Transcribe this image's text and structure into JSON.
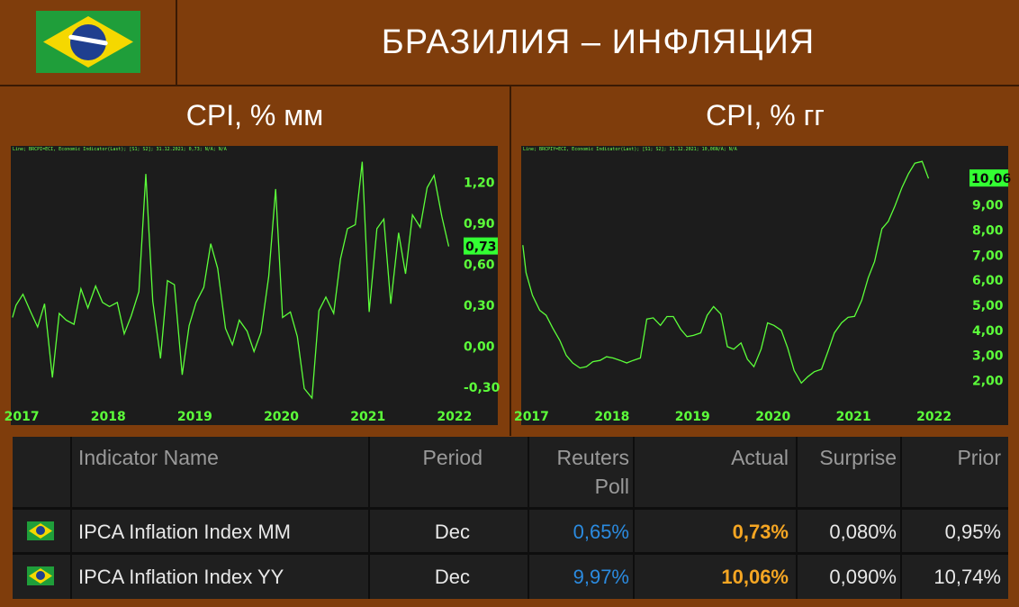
{
  "header": {
    "title": "БРАЗИЛИЯ – ИНФЛЯЦИЯ",
    "left_subtitle": "CPI, % мм",
    "right_subtitle": "CPI, % гг"
  },
  "colors": {
    "background": "#7f3d0c",
    "chart_bg": "#1c1c1c",
    "line": "#5cff3a",
    "poll": "#2b8be0",
    "actual": "#f5a623"
  },
  "chart_data": [
    {
      "type": "line",
      "title": "CPI, % мм",
      "caption": "Line; BRCPI=ECI, Economic Indicator(Last); [S1; S2]; 31.12.2021; 0,73; N/A; N/A",
      "x_labels": [
        "2017",
        "2018",
        "2019",
        "2020",
        "2021",
        "2022"
      ],
      "ytick_labels": [
        "1,20",
        "0,90",
        "0,60",
        "0,30",
        "0,00",
        "-0,30"
      ],
      "last_value_label": "0,73",
      "ylim": [
        -0.38,
        1.4
      ],
      "x": [
        2016.92,
        2016.96,
        2017.04,
        2017.13,
        2017.21,
        2017.29,
        2017.38,
        2017.46,
        2017.54,
        2017.63,
        2017.71,
        2017.79,
        2017.88,
        2017.96,
        2018.04,
        2018.13,
        2018.21,
        2018.29,
        2018.38,
        2018.46,
        2018.54,
        2018.63,
        2018.71,
        2018.79,
        2018.88,
        2018.96,
        2019.04,
        2019.13,
        2019.21,
        2019.29,
        2019.38,
        2019.46,
        2019.54,
        2019.63,
        2019.71,
        2019.79,
        2019.88,
        2019.96,
        2020.04,
        2020.13,
        2020.21,
        2020.29,
        2020.38,
        2020.46,
        2020.54,
        2020.63,
        2020.71,
        2020.79,
        2020.88,
        2020.96,
        2021.04,
        2021.13,
        2021.21,
        2021.29,
        2021.38,
        2021.46,
        2021.54,
        2021.63,
        2021.71,
        2021.79,
        2021.88,
        2021.96
      ],
      "y": [
        0.21,
        0.3,
        0.38,
        0.25,
        0.14,
        0.31,
        -0.23,
        0.24,
        0.19,
        0.16,
        0.42,
        0.28,
        0.44,
        0.32,
        0.29,
        0.32,
        0.09,
        0.22,
        0.4,
        1.26,
        0.33,
        -0.09,
        0.48,
        0.45,
        -0.21,
        0.15,
        0.32,
        0.43,
        0.75,
        0.57,
        0.13,
        0.01,
        0.19,
        0.11,
        -0.04,
        0.1,
        0.51,
        1.15,
        0.21,
        0.25,
        0.07,
        -0.31,
        -0.38,
        0.26,
        0.36,
        0.24,
        0.64,
        0.86,
        0.89,
        1.35,
        0.25,
        0.86,
        0.93,
        0.31,
        0.83,
        0.53,
        0.96,
        0.87,
        1.16,
        1.25,
        0.95,
        0.73
      ]
    },
    {
      "type": "line",
      "title": "CPI, % гг",
      "caption": "Line; BRCPIY=ECI, Economic Indicator(Last); [S1; S2]; 31.12.2021; 10,06N/A; N/A",
      "x_labels": [
        "2017",
        "2018",
        "2019",
        "2020",
        "2021",
        "2022"
      ],
      "ytick_labels": [
        "9,00",
        "8,00",
        "7,00",
        "6,00",
        "5,00",
        "4,00",
        "3,00",
        "2,00"
      ],
      "last_value_label": "10,06",
      "ylim": [
        1.3,
        11.0
      ],
      "x": [
        2016.92,
        2016.96,
        2017.04,
        2017.13,
        2017.21,
        2017.29,
        2017.38,
        2017.46,
        2017.54,
        2017.63,
        2017.71,
        2017.79,
        2017.88,
        2017.96,
        2018.04,
        2018.13,
        2018.21,
        2018.29,
        2018.38,
        2018.46,
        2018.54,
        2018.63,
        2018.71,
        2018.79,
        2018.88,
        2018.96,
        2019.04,
        2019.13,
        2019.21,
        2019.29,
        2019.38,
        2019.46,
        2019.54,
        2019.63,
        2019.71,
        2019.79,
        2019.88,
        2019.96,
        2020.04,
        2020.13,
        2020.21,
        2020.29,
        2020.38,
        2020.46,
        2020.54,
        2020.63,
        2020.71,
        2020.79,
        2020.88,
        2020.96,
        2021.04,
        2021.13,
        2021.21,
        2021.29,
        2021.38,
        2021.46,
        2021.54,
        2021.63,
        2021.71,
        2021.79,
        2021.88,
        2021.96
      ],
      "y": [
        7.4,
        6.3,
        5.4,
        4.8,
        4.6,
        4.1,
        3.6,
        3.0,
        2.7,
        2.5,
        2.55,
        2.75,
        2.8,
        2.95,
        2.9,
        2.8,
        2.7,
        2.8,
        2.9,
        4.45,
        4.5,
        4.2,
        4.55,
        4.55,
        4.05,
        3.75,
        3.8,
        3.9,
        4.6,
        4.95,
        4.65,
        3.35,
        3.25,
        3.5,
        2.85,
        2.55,
        3.25,
        4.3,
        4.2,
        4.0,
        3.3,
        2.4,
        1.9,
        2.15,
        2.35,
        2.45,
        3.15,
        3.9,
        4.3,
        4.52,
        4.56,
        5.2,
        6.1,
        6.75,
        8.05,
        8.35,
        8.95,
        9.7,
        10.25,
        10.67,
        10.74,
        10.06
      ]
    }
  ],
  "table": {
    "headers": {
      "name": "Indicator Name",
      "period": "Period",
      "poll_line1": "Reuters",
      "poll_line2": "Poll",
      "actual": "Actual",
      "surprise": "Surprise",
      "prior": "Prior"
    },
    "rows": [
      {
        "flag": "brazil-flag-icon",
        "name": "IPCA Inflation Index MM",
        "period": "Dec",
        "poll": "0,65%",
        "actual": "0,73%",
        "surprise": "0,080%",
        "prior": "0,95%"
      },
      {
        "flag": "brazil-flag-icon",
        "name": "IPCA Inflation Index YY",
        "period": "Dec",
        "poll": "9,97%",
        "actual": "10,06%",
        "surprise": "0,090%",
        "prior": "10,74%"
      }
    ]
  }
}
